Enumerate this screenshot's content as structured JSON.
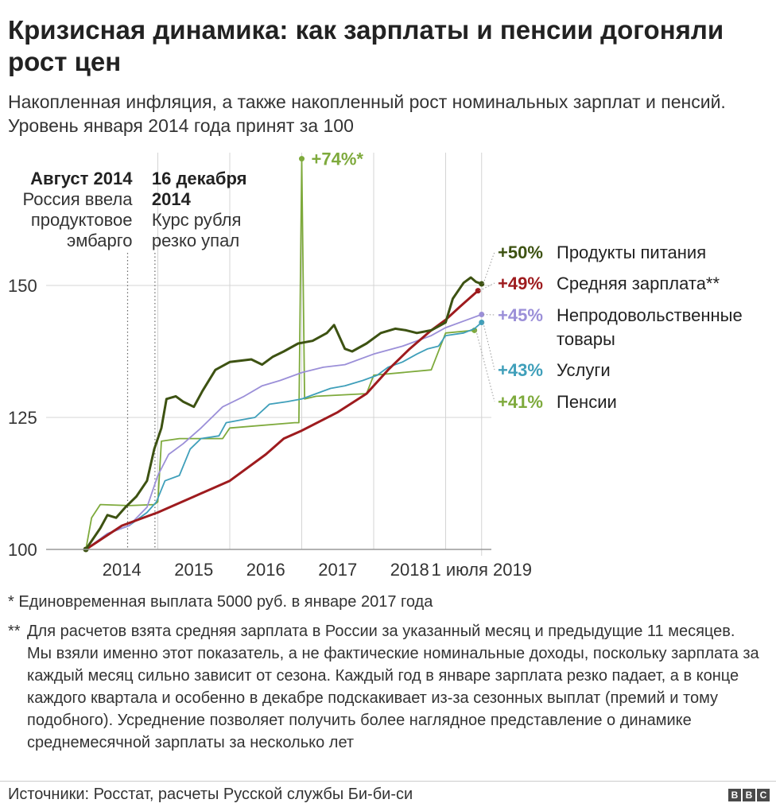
{
  "title": "Кризисная динамика: как зарплаты и пенсии догоняли рост цен",
  "subtitle": "Накопленная инфляция, а также накопленный рост номинальных зарплат и пенсий. Уровень января 2014 года принят за 100",
  "colors": {
    "food": "#3d5212",
    "wage": "#9e1b1e",
    "nonfood": "#9b8fd8",
    "services": "#3f9fba",
    "pensions": "#7eaa3c",
    "grid": "#d4d4d4",
    "axis": "#999999",
    "text": "#222222"
  },
  "chart_data": {
    "type": "line",
    "ylim": [
      100,
      150
    ],
    "yticks": [
      100,
      125,
      150
    ],
    "xticks": [
      {
        "x": 2014.5,
        "label": "2014"
      },
      {
        "x": 2015.5,
        "label": "2015"
      },
      {
        "x": 2016.5,
        "label": "2016"
      },
      {
        "x": 2017.5,
        "label": "2017"
      },
      {
        "x": 2018.5,
        "label": "2018"
      },
      {
        "x": 2019.5,
        "label": "1 июля 2019"
      }
    ],
    "xlim_label_note": "",
    "annotations": [
      {
        "x": 2014.58,
        "title": "Август 2014",
        "text": [
          "Россия ввела",
          "продуктовое",
          "эмбарго"
        ],
        "align": "right"
      },
      {
        "x": 2014.96,
        "title": "16 декабря 2014",
        "text": [
          "Курс рубля",
          "резко упал"
        ],
        "align": "left"
      }
    ],
    "spike_label": "+74%*",
    "series": [
      {
        "name": "Продукты питания",
        "key": "food",
        "end_label": "+50%",
        "points": [
          [
            2014.0,
            100
          ],
          [
            2014.2,
            104
          ],
          [
            2014.3,
            106.5
          ],
          [
            2014.42,
            106
          ],
          [
            2014.55,
            108
          ],
          [
            2014.7,
            110
          ],
          [
            2014.85,
            113
          ],
          [
            2014.95,
            119
          ],
          [
            2015.05,
            123
          ],
          [
            2015.12,
            128.5
          ],
          [
            2015.25,
            129
          ],
          [
            2015.35,
            128
          ],
          [
            2015.5,
            127
          ],
          [
            2015.62,
            130
          ],
          [
            2015.8,
            134
          ],
          [
            2016.0,
            135.5
          ],
          [
            2016.3,
            136
          ],
          [
            2016.45,
            135
          ],
          [
            2016.6,
            136.5
          ],
          [
            2016.75,
            137.5
          ],
          [
            2016.95,
            139
          ],
          [
            2017.15,
            139.5
          ],
          [
            2017.35,
            141
          ],
          [
            2017.45,
            142.5
          ],
          [
            2017.6,
            138
          ],
          [
            2017.7,
            137.5
          ],
          [
            2017.9,
            139
          ],
          [
            2018.1,
            141
          ],
          [
            2018.3,
            141.8
          ],
          [
            2018.45,
            141.5
          ],
          [
            2018.6,
            141
          ],
          [
            2018.8,
            141.5
          ],
          [
            2019.0,
            143
          ],
          [
            2019.1,
            147.5
          ],
          [
            2019.25,
            150.5
          ],
          [
            2019.35,
            151.5
          ],
          [
            2019.42,
            150.7
          ],
          [
            2019.5,
            150.3
          ]
        ]
      },
      {
        "name": "Средняя зарплата**",
        "key": "wage",
        "end_label": "+49%",
        "points": [
          [
            2014.0,
            100
          ],
          [
            2014.5,
            104.5
          ],
          [
            2015.0,
            107
          ],
          [
            2015.5,
            110
          ],
          [
            2016.0,
            113
          ],
          [
            2016.5,
            118
          ],
          [
            2016.75,
            121
          ],
          [
            2017.0,
            122.5
          ],
          [
            2017.5,
            126
          ],
          [
            2017.9,
            129.5
          ],
          [
            2018.2,
            134
          ],
          [
            2018.5,
            138
          ],
          [
            2018.8,
            141.5
          ],
          [
            2019.0,
            143.5
          ],
          [
            2019.2,
            146
          ],
          [
            2019.45,
            149
          ]
        ]
      },
      {
        "name": "Непродовольственные товары",
        "key": "nonfood",
        "end_label": "+45%",
        "points": [
          [
            2014.0,
            100
          ],
          [
            2014.3,
            103
          ],
          [
            2014.6,
            104.5
          ],
          [
            2014.85,
            108
          ],
          [
            2015.0,
            114
          ],
          [
            2015.15,
            118
          ],
          [
            2015.35,
            120
          ],
          [
            2015.6,
            123
          ],
          [
            2015.9,
            127
          ],
          [
            2016.2,
            129
          ],
          [
            2016.45,
            131
          ],
          [
            2016.7,
            132
          ],
          [
            2017.0,
            133.5
          ],
          [
            2017.3,
            134.5
          ],
          [
            2017.6,
            135
          ],
          [
            2018.0,
            137
          ],
          [
            2018.4,
            138.5
          ],
          [
            2018.8,
            140.5
          ],
          [
            2019.0,
            142
          ],
          [
            2019.3,
            143.5
          ],
          [
            2019.5,
            144.5
          ]
        ]
      },
      {
        "name": "Услуги",
        "key": "services",
        "end_label": "+43%",
        "points": [
          [
            2014.0,
            100
          ],
          [
            2014.3,
            103
          ],
          [
            2014.6,
            104.5
          ],
          [
            2014.85,
            107
          ],
          [
            2014.98,
            109
          ],
          [
            2015.1,
            113
          ],
          [
            2015.3,
            114
          ],
          [
            2015.45,
            119
          ],
          [
            2015.6,
            121
          ],
          [
            2015.85,
            121.5
          ],
          [
            2015.95,
            124
          ],
          [
            2016.15,
            124.5
          ],
          [
            2016.35,
            125
          ],
          [
            2016.55,
            127.5
          ],
          [
            2016.8,
            128
          ],
          [
            2017.0,
            128.5
          ],
          [
            2017.2,
            129.5
          ],
          [
            2017.4,
            130.5
          ],
          [
            2017.6,
            131
          ],
          [
            2017.85,
            132
          ],
          [
            2018.05,
            133
          ],
          [
            2018.2,
            134.5
          ],
          [
            2018.4,
            135.5
          ],
          [
            2018.6,
            137
          ],
          [
            2018.75,
            138
          ],
          [
            2018.9,
            138.5
          ],
          [
            2019.0,
            140.5
          ],
          [
            2019.25,
            141
          ],
          [
            2019.4,
            141.8
          ],
          [
            2019.5,
            143
          ]
        ]
      },
      {
        "name": "Пенсии",
        "key": "pensions",
        "end_label": "+41%",
        "points": [
          [
            2014.0,
            100
          ],
          [
            2014.08,
            106
          ],
          [
            2014.2,
            108.5
          ],
          [
            2014.6,
            108.3
          ],
          [
            2014.95,
            108.5
          ],
          [
            2015.0,
            109
          ],
          [
            2015.05,
            120.5
          ],
          [
            2015.3,
            121
          ],
          [
            2015.9,
            121
          ],
          [
            2016.0,
            123
          ],
          [
            2016.9,
            124
          ],
          [
            2016.96,
            124
          ],
          [
            2017.0,
            174
          ],
          [
            2017.04,
            128.5
          ],
          [
            2017.2,
            129
          ],
          [
            2017.9,
            129.5
          ],
          [
            2018.0,
            133
          ],
          [
            2018.8,
            134
          ],
          [
            2019.0,
            141
          ],
          [
            2019.4,
            141.5
          ]
        ]
      }
    ]
  },
  "footnotes": {
    "note1": "*  Единовременная выплата 5000 руб. в январе 2017 года",
    "note2_mark": "**",
    "note2": "Для расчетов взята средняя зарплата в России за указанный месяц и предыдущие 11 месяцев. Мы взяли именно этот показатель, а не фактические номинальные доходы, поскольку зарплата за каждый месяц сильно зависит от сезона. Каждый год в январе зарплата резко падает, а в конце каждого квартала и особенно в декабре подскакивает из-за сезонных выплат (премий и тому подобного). Усреднение позволяет получить более наглядное представление о динамике среднемесячной зарплаты за несколько лет"
  },
  "source": "Источники: Росстат, расчеты Русской службы Би-би-си",
  "logo_letters": [
    "B",
    "B",
    "C"
  ]
}
